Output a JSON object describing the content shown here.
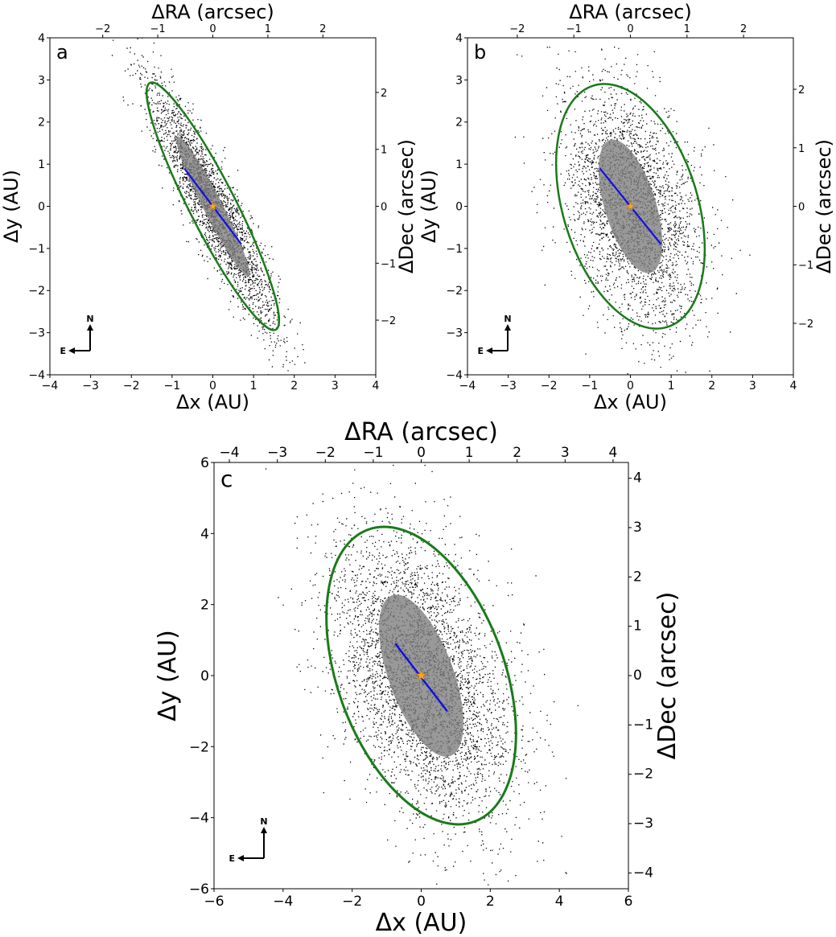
{
  "chart_data": [
    {
      "type": "scatter",
      "panel_label": "a",
      "xlabel": "Δx (AU)",
      "ylabel": "Δy (AU)",
      "top_label": "ΔRA (arcsec)",
      "right_label": "ΔDec (arcsec)",
      "xlim": [
        -4,
        4
      ],
      "ylim": [
        -4,
        4
      ],
      "xticks": [
        -4,
        -3,
        -2,
        -1,
        0,
        1,
        2,
        3,
        4
      ],
      "yticks": [
        -4,
        -3,
        -2,
        -1,
        0,
        1,
        2,
        3,
        4
      ],
      "xtick_labels": [
        "−4",
        "−3",
        "−2",
        "−1",
        "0",
        "1",
        "2",
        "3",
        "4"
      ],
      "ytick_labels": [
        "−4",
        "−3",
        "−2",
        "−1",
        "0",
        "1",
        "2",
        "3",
        "4"
      ],
      "top_ticks": [
        -2,
        -1,
        0,
        1,
        2
      ],
      "top_tick_labels": [
        "−2",
        "−1",
        "0",
        "1",
        "2"
      ],
      "right_ticks": [
        -2,
        -1,
        0,
        1,
        2
      ],
      "right_tick_labels": [
        "−2",
        "−1",
        "0",
        "1",
        "2"
      ],
      "arcsec_per_au": 0.74,
      "ellipse": {
        "a": 3.4,
        "b": 0.55,
        "tilt_deg": -63
      },
      "cloud": {
        "a": 3.5,
        "b": 0.6,
        "tilt_deg": -63,
        "n_points": 2600
      },
      "blue_line": {
        "x": [
          -0.7,
          0.7
        ],
        "y": [
          0.9,
          -0.9
        ]
      },
      "star": {
        "x": 0,
        "y": 0
      },
      "compass": {
        "north_label": "N",
        "east_label": "E"
      }
    },
    {
      "type": "scatter",
      "panel_label": "b",
      "xlabel": "Δx (AU)",
      "ylabel": "Δy (AU)",
      "top_label": "ΔRA (arcsec)",
      "right_label": "ΔDec (arcsec)",
      "xlim": [
        -4,
        4
      ],
      "ylim": [
        -4,
        4
      ],
      "xticks": [
        -4,
        -3,
        -2,
        -1,
        0,
        1,
        2,
        3,
        4
      ],
      "yticks": [
        -4,
        -3,
        -2,
        -1,
        0,
        1,
        2,
        3,
        4
      ],
      "xtick_labels": [
        "−4",
        "−3",
        "−2",
        "−1",
        "0",
        "1",
        "2",
        "3",
        "4"
      ],
      "ytick_labels": [
        "−4",
        "−3",
        "−2",
        "−1",
        "0",
        "1",
        "2",
        "3",
        "4"
      ],
      "top_ticks": [
        -2,
        -1,
        0,
        1,
        2
      ],
      "top_tick_labels": [
        "−2",
        "−1",
        "0",
        "1",
        "2"
      ],
      "right_ticks": [
        -2,
        -1,
        0,
        1,
        2
      ],
      "right_tick_labels": [
        "−2",
        "−1",
        "0",
        "1",
        "2"
      ],
      "arcsec_per_au": 0.72,
      "ellipse": {
        "a": 3.1,
        "b": 1.6,
        "tilt_deg": -73
      },
      "cloud": {
        "a": 3.1,
        "b": 1.6,
        "tilt_deg": -73,
        "n_points": 3000
      },
      "blue_line": {
        "x": [
          -0.75,
          0.75
        ],
        "y": [
          0.9,
          -0.9
        ]
      },
      "star": {
        "x": 0,
        "y": 0
      },
      "compass": {
        "north_label": "N",
        "east_label": "E"
      }
    },
    {
      "type": "scatter",
      "panel_label": "c",
      "xlabel": "Δx (AU)",
      "ylabel": "Δy (AU)",
      "top_label": "ΔRA (arcsec)",
      "right_label": "ΔDec (arcsec)",
      "xlim": [
        -6,
        6
      ],
      "ylim": [
        -6,
        6
      ],
      "xticks": [
        -6,
        -4,
        -2,
        0,
        2,
        4,
        6
      ],
      "yticks": [
        -6,
        -4,
        -2,
        0,
        2,
        4,
        6
      ],
      "xtick_labels": [
        "−6",
        "−4",
        "−2",
        "0",
        "2",
        "4",
        "6"
      ],
      "ytick_labels": [
        "−6",
        "−4",
        "−2",
        "0",
        "2",
        "4",
        "6"
      ],
      "top_ticks": [
        -4,
        -3,
        -2,
        -1,
        0,
        1,
        2,
        3,
        4
      ],
      "top_tick_labels": [
        "−4",
        "−3",
        "−2",
        "−1",
        "0",
        "1",
        "2",
        "3",
        "4"
      ],
      "right_ticks": [
        -4,
        -3,
        -2,
        -1,
        0,
        1,
        2,
        3,
        4
      ],
      "right_tick_labels": [
        "−4",
        "−3",
        "−2",
        "−1",
        "0",
        "1",
        "2",
        "3",
        "4"
      ],
      "arcsec_per_au": 0.72,
      "ellipse": {
        "a": 4.5,
        "b": 2.35,
        "tilt_deg": -70
      },
      "cloud": {
        "a": 4.5,
        "b": 2.4,
        "tilt_deg": -70,
        "n_points": 4200
      },
      "blue_line": {
        "x": [
          -0.75,
          0.75
        ],
        "y": [
          0.9,
          -1.0
        ]
      },
      "star": {
        "x": 0,
        "y": 0
      },
      "compass": {
        "north_label": "N",
        "east_label": "E"
      }
    }
  ],
  "colors": {
    "ellipse": "#1a7a1a",
    "line": "#1010e0",
    "star": "#f5a623",
    "points": "#000000",
    "core": "#808080",
    "axis": "#000000"
  }
}
